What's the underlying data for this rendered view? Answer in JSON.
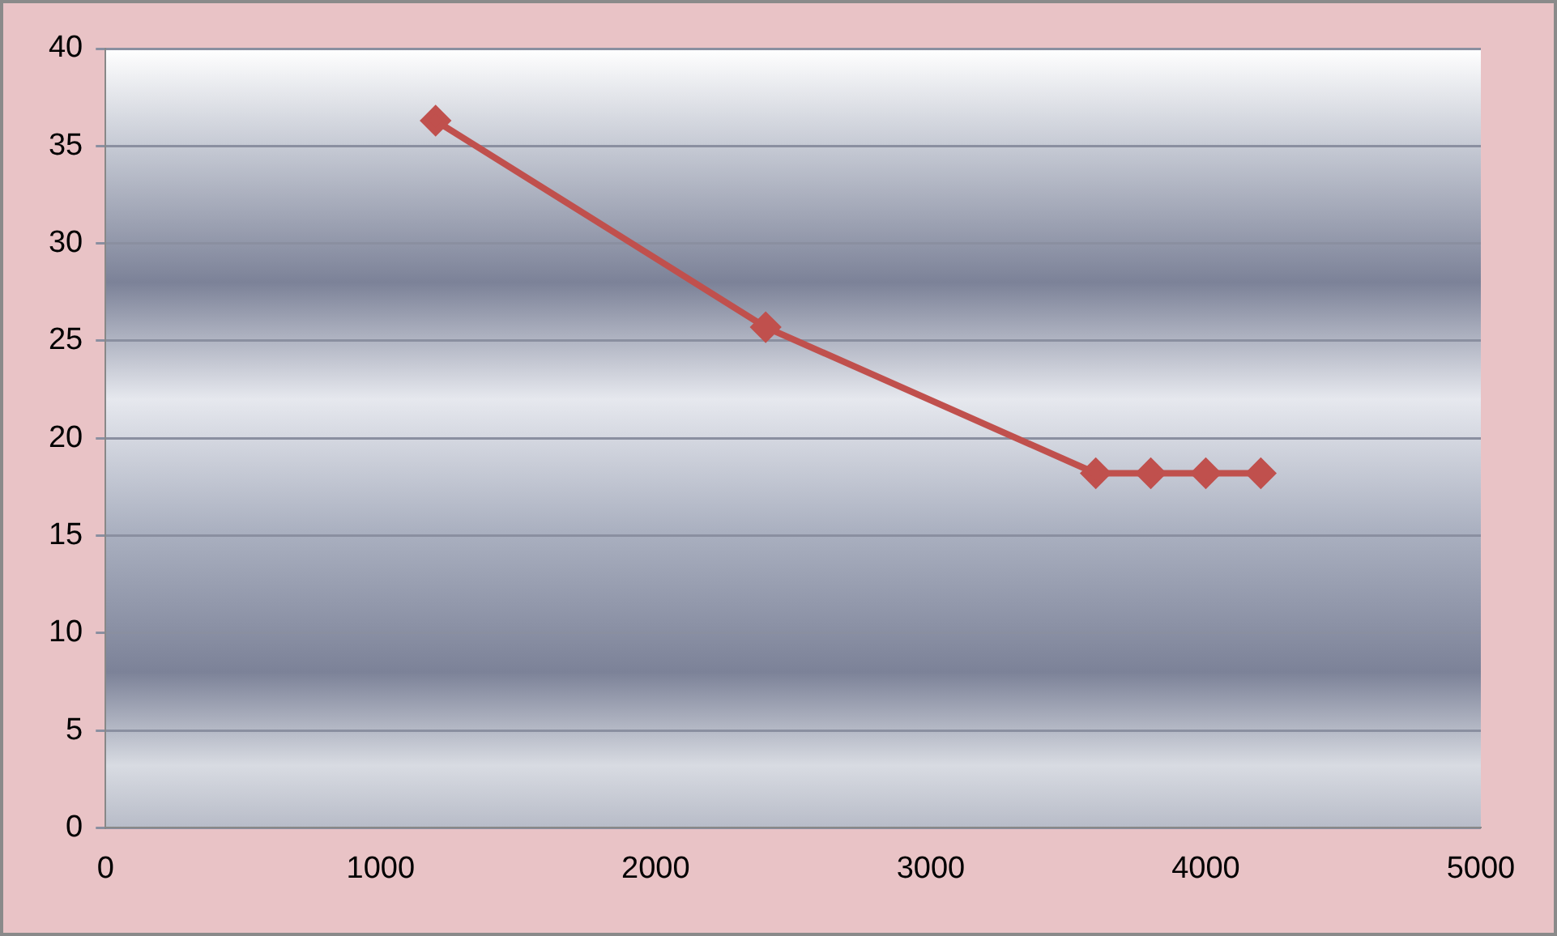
{
  "chart_data": {
    "type": "line",
    "x": [
      1200,
      2400,
      3600,
      3800,
      4000,
      4200
    ],
    "series": [
      {
        "color": "#c0504d",
        "values": [
          36.3,
          25.7,
          18.2,
          18.2,
          18.2,
          18.2
        ]
      }
    ],
    "xlim": [
      0,
      5000
    ],
    "xticks": [
      0,
      1000,
      2000,
      3000,
      4000,
      5000
    ],
    "ylim": [
      0,
      40
    ],
    "yticks": [
      0,
      5,
      10,
      15,
      20,
      25,
      30,
      35,
      40
    ],
    "grid": "y",
    "marker": "diamond",
    "line_style": "solid",
    "legend": false
  }
}
